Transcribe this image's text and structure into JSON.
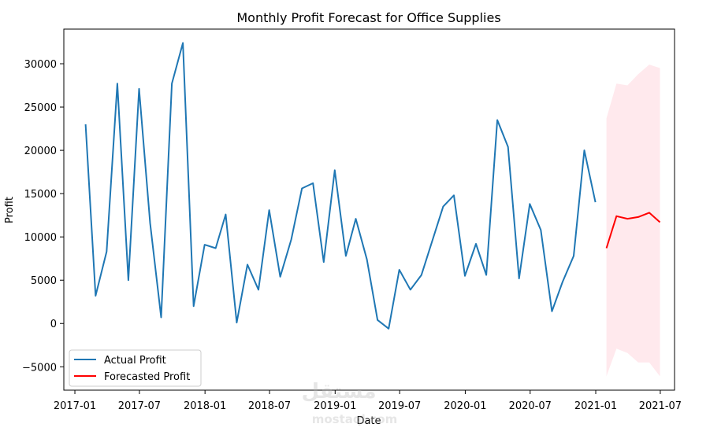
{
  "chart_data": {
    "type": "line",
    "title": "Monthly Profit Forecast for Office Supplies",
    "xlabel": "Date",
    "ylabel": "Profit",
    "xlim": [
      "2016-12-01",
      "2021-08-10"
    ],
    "ylim": [
      -7700,
      34000
    ],
    "x_ticks": [
      "2017-01",
      "2017-07",
      "2018-01",
      "2018-07",
      "2019-01",
      "2019-07",
      "2020-01",
      "2020-07",
      "2021-01",
      "2021-07"
    ],
    "y_ticks": [
      -5000,
      0,
      5000,
      10000,
      15000,
      20000,
      25000,
      30000
    ],
    "legend_position": "lower-left",
    "series": [
      {
        "name": "Actual Profit",
        "color": "#1f77b4",
        "x": [
          "2017-01-31",
          "2017-02-28",
          "2017-03-31",
          "2017-04-30",
          "2017-05-31",
          "2017-06-30",
          "2017-07-31",
          "2017-08-31",
          "2017-09-30",
          "2017-10-31",
          "2017-11-30",
          "2017-12-31",
          "2018-01-31",
          "2018-02-28",
          "2018-03-31",
          "2018-04-30",
          "2018-05-31",
          "2018-06-30",
          "2018-07-31",
          "2018-08-31",
          "2018-09-30",
          "2018-10-31",
          "2018-11-30",
          "2018-12-31",
          "2019-01-31",
          "2019-02-28",
          "2019-03-31",
          "2019-04-30",
          "2019-05-31",
          "2019-06-30",
          "2019-07-31",
          "2019-08-31",
          "2019-09-30",
          "2019-10-31",
          "2019-11-30",
          "2019-12-31",
          "2020-01-31",
          "2020-02-29",
          "2020-03-31",
          "2020-04-30",
          "2020-05-31",
          "2020-06-30",
          "2020-07-31",
          "2020-08-31",
          "2020-09-30",
          "2020-10-31",
          "2020-11-30",
          "2020-12-31"
        ],
        "values": [
          23000,
          3200,
          8300,
          27700,
          5000,
          27100,
          11600,
          700,
          27700,
          32400,
          2000,
          9100,
          8700,
          12600,
          100,
          6800,
          3900,
          13100,
          5400,
          9700,
          15600,
          16200,
          7100,
          17700,
          7800,
          12100,
          7400,
          400,
          -600,
          6200,
          3900,
          5600,
          9500,
          13500,
          14800,
          5500,
          9200,
          5600,
          23500,
          20400,
          5200,
          13800,
          10800,
          1400,
          4800,
          7800,
          20000,
          14000
        ]
      },
      {
        "name": "Forecasted Profit",
        "color": "#ff0000",
        "x": [
          "2021-01-31",
          "2021-02-28",
          "2021-03-31",
          "2021-04-30",
          "2021-05-31",
          "2021-06-30"
        ],
        "values": [
          8700,
          12400,
          12100,
          12300,
          12800,
          11700
        ]
      }
    ],
    "confidence_band": {
      "x": [
        "2021-01-31",
        "2021-02-28",
        "2021-03-31",
        "2021-04-30",
        "2021-05-31",
        "2021-06-30"
      ],
      "lower": [
        -6100,
        -2900,
        -3400,
        -4500,
        -4500,
        -6100
      ],
      "upper": [
        23700,
        27700,
        27500,
        28800,
        29900,
        29500
      ],
      "color": "#ffc0cb"
    }
  },
  "watermark": {
    "glyph": "مستقل",
    "text": "mostaql.com"
  }
}
